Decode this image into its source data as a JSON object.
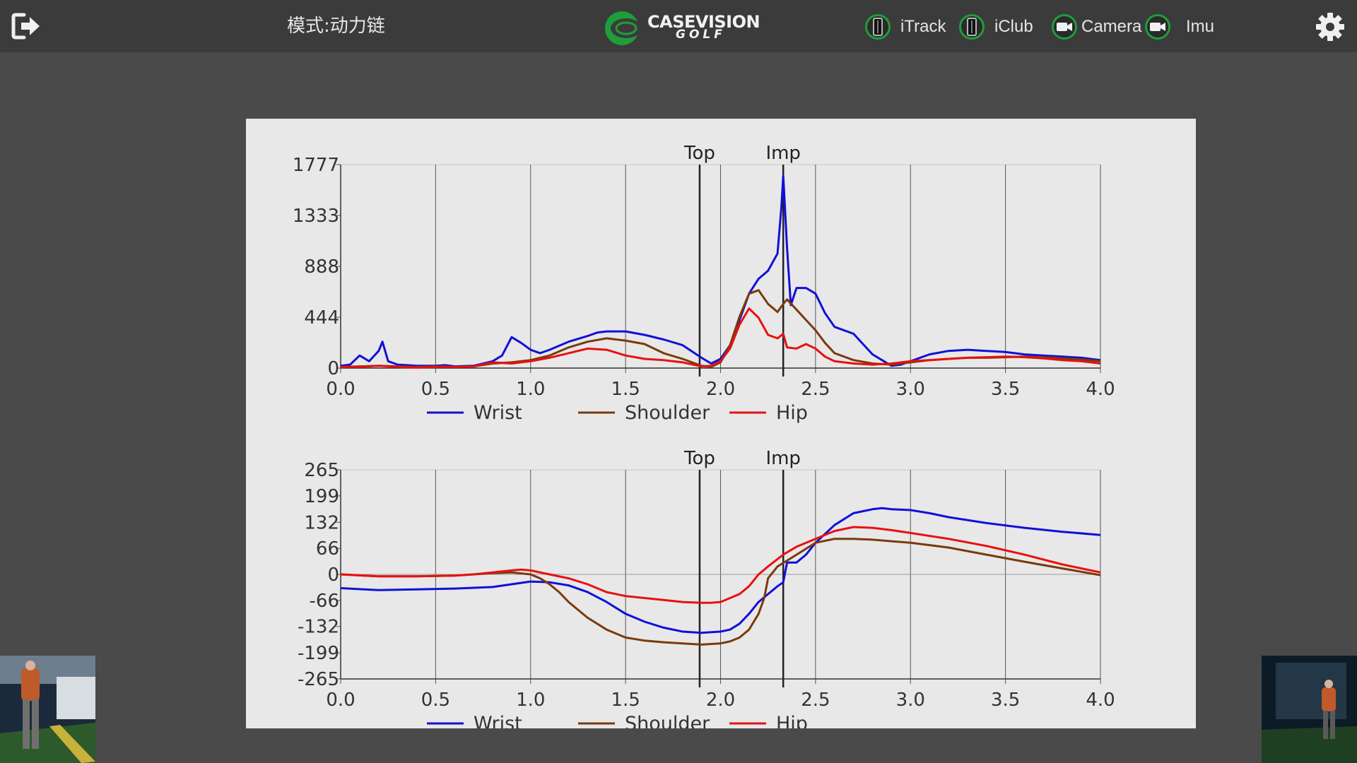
{
  "header": {
    "mode_label": "模式:动力链",
    "logo": {
      "line1": "CASEVISION",
      "line2": "GOLF",
      "color": "#1e9e3a"
    },
    "devices": [
      {
        "label": "iTrack",
        "icon": "phone-icon"
      },
      {
        "label": "iClub",
        "icon": "phone-icon"
      },
      {
        "label": "Camera",
        "icon": "camera-icon"
      },
      {
        "label": "Imu",
        "icon": "camera-icon"
      }
    ],
    "status_color": "#1e9e3a"
  },
  "chart_data": [
    {
      "type": "line",
      "markers": [
        {
          "label": "Top",
          "x": 1.89
        },
        {
          "label": "Imp",
          "x": 2.33
        }
      ],
      "xlim": [
        0.0,
        4.0
      ],
      "xticks": [
        "0.0",
        "0.5",
        "1.0",
        "1.5",
        "2.0",
        "2.5",
        "3.0",
        "3.5",
        "4.0"
      ],
      "ylim": [
        0,
        1777
      ],
      "yticks": [
        "0",
        "444",
        "888",
        "1333",
        "1777"
      ],
      "legend_position": "bottom",
      "grid": "vertical",
      "series": [
        {
          "name": "Wrist",
          "color": "#1010d8",
          "x": [
            0.0,
            0.05,
            0.1,
            0.15,
            0.2,
            0.22,
            0.25,
            0.3,
            0.35,
            0.4,
            0.5,
            0.55,
            0.6,
            0.7,
            0.8,
            0.85,
            0.9,
            0.95,
            1.0,
            1.05,
            1.1,
            1.2,
            1.3,
            1.35,
            1.4,
            1.5,
            1.6,
            1.7,
            1.8,
            1.9,
            1.95,
            2.0,
            2.05,
            2.1,
            2.15,
            2.2,
            2.25,
            2.3,
            2.32,
            2.33,
            2.35,
            2.37,
            2.4,
            2.45,
            2.5,
            2.55,
            2.6,
            2.7,
            2.8,
            2.9,
            2.95,
            3.0,
            3.1,
            3.2,
            3.3,
            3.4,
            3.5,
            3.6,
            3.7,
            3.8,
            3.9,
            4.0
          ],
          "y": [
            20,
            30,
            110,
            60,
            150,
            230,
            60,
            30,
            25,
            20,
            20,
            25,
            15,
            20,
            60,
            110,
            270,
            220,
            160,
            130,
            160,
            230,
            280,
            310,
            320,
            320,
            290,
            250,
            200,
            90,
            40,
            80,
            200,
            420,
            650,
            780,
            850,
            1000,
            1400,
            1680,
            1050,
            550,
            700,
            700,
            650,
            480,
            360,
            300,
            120,
            20,
            30,
            60,
            120,
            150,
            160,
            150,
            140,
            120,
            110,
            100,
            90,
            70
          ]
        },
        {
          "name": "Shoulder",
          "color": "#7a3a0a",
          "x": [
            0.0,
            0.1,
            0.2,
            0.3,
            0.4,
            0.5,
            0.6,
            0.7,
            0.8,
            0.9,
            1.0,
            1.1,
            1.2,
            1.3,
            1.4,
            1.5,
            1.6,
            1.7,
            1.8,
            1.9,
            1.95,
            2.0,
            2.05,
            2.1,
            2.15,
            2.2,
            2.25,
            2.3,
            2.33,
            2.35,
            2.4,
            2.45,
            2.5,
            2.55,
            2.6,
            2.7,
            2.8,
            2.9,
            3.0,
            3.1,
            3.2,
            3.3,
            3.4,
            3.5,
            3.6,
            3.7,
            3.8,
            3.9,
            4.0
          ],
          "y": [
            10,
            15,
            20,
            15,
            10,
            15,
            10,
            15,
            40,
            50,
            70,
            110,
            180,
            230,
            260,
            240,
            210,
            130,
            80,
            20,
            10,
            50,
            200,
            450,
            650,
            680,
            560,
            490,
            560,
            600,
            510,
            420,
            330,
            220,
            130,
            70,
            40,
            30,
            50,
            70,
            80,
            90,
            90,
            95,
            100,
            95,
            85,
            75,
            60
          ]
        },
        {
          "name": "Hip",
          "color": "#e81010",
          "x": [
            0.0,
            0.1,
            0.2,
            0.3,
            0.4,
            0.5,
            0.6,
            0.7,
            0.8,
            0.9,
            1.0,
            1.1,
            1.2,
            1.3,
            1.4,
            1.5,
            1.6,
            1.7,
            1.8,
            1.9,
            1.95,
            2.0,
            2.05,
            2.1,
            2.15,
            2.2,
            2.25,
            2.3,
            2.33,
            2.35,
            2.4,
            2.45,
            2.5,
            2.55,
            2.6,
            2.7,
            2.8,
            2.9,
            3.0,
            3.1,
            3.2,
            3.3,
            3.4,
            3.5,
            3.6,
            3.7,
            3.8,
            3.9,
            4.0
          ],
          "y": [
            10,
            10,
            20,
            10,
            5,
            10,
            10,
            15,
            50,
            40,
            60,
            90,
            130,
            170,
            160,
            110,
            80,
            70,
            50,
            15,
            20,
            60,
            170,
            380,
            520,
            440,
            290,
            260,
            300,
            180,
            170,
            210,
            170,
            100,
            60,
            40,
            30,
            40,
            60,
            70,
            80,
            90,
            95,
            100,
            95,
            85,
            70,
            60,
            40
          ]
        }
      ]
    },
    {
      "type": "line",
      "markers": [
        {
          "label": "Top",
          "x": 1.89
        },
        {
          "label": "Imp",
          "x": 2.33
        }
      ],
      "xlim": [
        0.0,
        4.0
      ],
      "xticks": [
        "0.0",
        "0.5",
        "1.0",
        "1.5",
        "2.0",
        "2.5",
        "3.0",
        "3.5",
        "4.0"
      ],
      "ylim": [
        -265,
        265
      ],
      "yticks": [
        "-265",
        "-199",
        "-132",
        "-66",
        "0",
        "66",
        "132",
        "199",
        "265"
      ],
      "legend_position": "bottom",
      "grid": "vertical",
      "series": [
        {
          "name": "Wrist",
          "color": "#1010d8",
          "x": [
            0.0,
            0.2,
            0.4,
            0.6,
            0.8,
            0.9,
            1.0,
            1.1,
            1.2,
            1.3,
            1.4,
            1.5,
            1.6,
            1.7,
            1.8,
            1.9,
            2.0,
            2.05,
            2.1,
            2.15,
            2.2,
            2.25,
            2.3,
            2.33,
            2.35,
            2.4,
            2.45,
            2.5,
            2.6,
            2.7,
            2.8,
            2.85,
            2.9,
            3.0,
            3.1,
            3.2,
            3.4,
            3.6,
            3.8,
            4.0
          ],
          "y": [
            -35,
            -40,
            -38,
            -36,
            -32,
            -25,
            -18,
            -20,
            -28,
            -45,
            -70,
            -100,
            -120,
            -135,
            -145,
            -148,
            -145,
            -140,
            -125,
            -100,
            -70,
            -50,
            -30,
            -20,
            30,
            30,
            50,
            80,
            125,
            155,
            165,
            168,
            165,
            163,
            155,
            145,
            130,
            118,
            108,
            100
          ]
        },
        {
          "name": "Shoulder",
          "color": "#7a3a0a",
          "x": [
            0.0,
            0.2,
            0.4,
            0.6,
            0.7,
            0.8,
            0.9,
            1.0,
            1.05,
            1.1,
            1.15,
            1.2,
            1.3,
            1.4,
            1.5,
            1.6,
            1.7,
            1.8,
            1.9,
            2.0,
            2.05,
            2.1,
            2.15,
            2.2,
            2.23,
            2.25,
            2.3,
            2.35,
            2.4,
            2.5,
            2.6,
            2.7,
            2.8,
            2.9,
            3.0,
            3.2,
            3.4,
            3.6,
            3.8,
            4.0
          ],
          "y": [
            0,
            -5,
            -5,
            -3,
            0,
            3,
            5,
            0,
            -10,
            -25,
            -45,
            -70,
            -110,
            -140,
            -160,
            -168,
            -172,
            -175,
            -178,
            -175,
            -170,
            -160,
            -140,
            -100,
            -60,
            -10,
            20,
            35,
            50,
            80,
            90,
            90,
            88,
            84,
            80,
            68,
            50,
            32,
            15,
            -2
          ]
        },
        {
          "name": "Hip",
          "color": "#e81010",
          "x": [
            0.0,
            0.2,
            0.4,
            0.6,
            0.7,
            0.8,
            0.9,
            0.95,
            1.0,
            1.05,
            1.1,
            1.2,
            1.3,
            1.4,
            1.5,
            1.6,
            1.7,
            1.8,
            1.9,
            1.95,
            2.0,
            2.05,
            2.1,
            2.15,
            2.2,
            2.25,
            2.33,
            2.4,
            2.5,
            2.6,
            2.7,
            2.8,
            2.9,
            3.0,
            3.2,
            3.4,
            3.6,
            3.8,
            4.0
          ],
          "y": [
            0,
            -5,
            -5,
            -3,
            0,
            5,
            10,
            12,
            10,
            5,
            0,
            -10,
            -25,
            -45,
            -55,
            -60,
            -65,
            -70,
            -72,
            -72,
            -70,
            -60,
            -50,
            -30,
            0,
            20,
            50,
            70,
            90,
            110,
            120,
            118,
            112,
            105,
            90,
            72,
            50,
            25,
            5
          ]
        }
      ]
    }
  ]
}
